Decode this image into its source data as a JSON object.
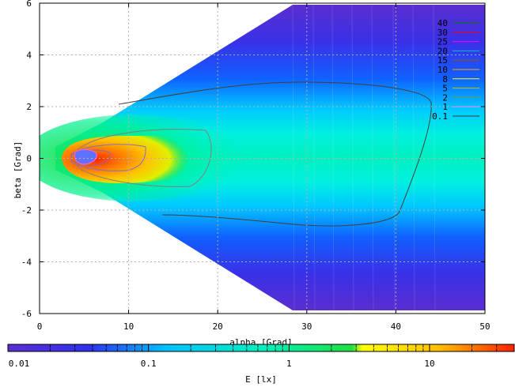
{
  "chart_data": {
    "type": "heatmap",
    "title": "",
    "xlabel": "alpha [Grad]",
    "ylabel": "beta [Grad]",
    "xlim": [
      0,
      50
    ],
    "ylim": [
      6,
      -6
    ],
    "x_ticks": [
      "0",
      "10",
      "20",
      "30",
      "40",
      "50"
    ],
    "y_ticks": [
      "-6",
      "-4",
      "-2",
      "0",
      "2",
      "4",
      "6"
    ],
    "grid": true,
    "colorbar": {
      "label": "E [lx]",
      "scale": "log",
      "range": [
        0.01,
        40
      ],
      "tick_labels": [
        "0.01",
        "0.1",
        "1",
        "10"
      ]
    },
    "legend": {
      "placement": "top-right",
      "entries": [
        {
          "label": "40",
          "color": "#008000"
        },
        {
          "label": "30",
          "color": "#ff0000"
        },
        {
          "label": "25",
          "color": "#ff00ff"
        },
        {
          "label": "20",
          "color": "#00c0c0"
        },
        {
          "label": "15",
          "color": "#a05000"
        },
        {
          "label": "10",
          "color": "#ffa000"
        },
        {
          "label": "8",
          "color": "#ffff00"
        },
        {
          "label": "5",
          "color": "#c0c000"
        },
        {
          "label": "2",
          "color": "#60a060"
        },
        {
          "label": "1",
          "color": "#ff80ff"
        },
        {
          "label": "0.1",
          "color": "#404040"
        }
      ]
    },
    "peak": {
      "alpha": 5,
      "beta": 0,
      "value": 40
    }
  }
}
